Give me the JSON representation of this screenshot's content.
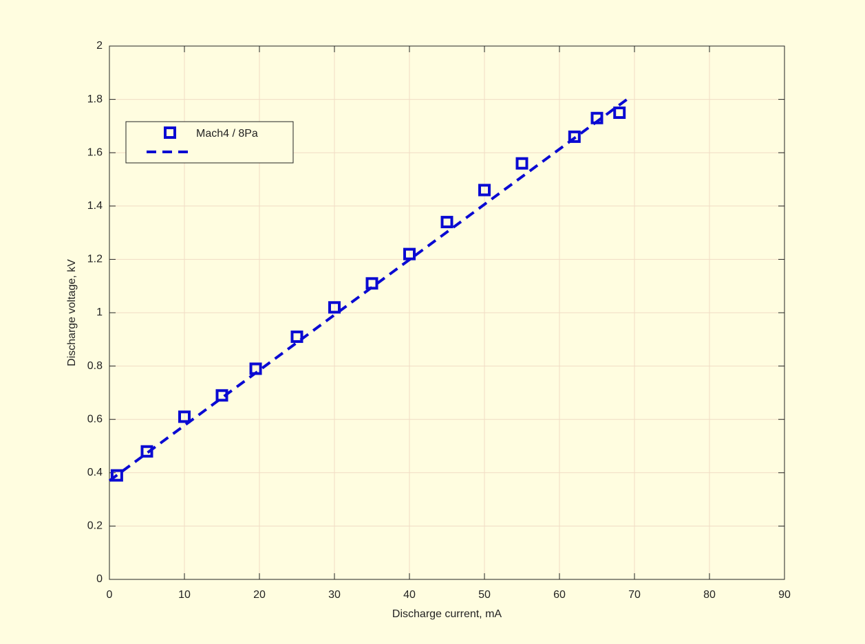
{
  "chart_data": {
    "type": "scatter",
    "xlabel": "Discharge current, mA",
    "ylabel": "Discharge voltage, kV",
    "xlim": [
      0,
      90
    ],
    "xticks": [
      0,
      10,
      20,
      30,
      40,
      50,
      60,
      70,
      80,
      90
    ],
    "ylim": [
      0,
      2
    ],
    "yticks": [
      0,
      0.2,
      0.4,
      0.6,
      0.8,
      1,
      1.2,
      1.4,
      1.6,
      1.8,
      2
    ],
    "grid": true,
    "legend": "upper left",
    "series": [
      {
        "name": "Mach4 / 8Pa",
        "color": "#0a0ad2",
        "mode": "markers",
        "x": [
          1,
          5,
          10,
          15,
          19.5,
          25,
          30,
          35,
          40,
          45,
          50,
          55,
          62,
          65,
          68
        ],
        "values": [
          0.39,
          0.48,
          0.61,
          0.69,
          0.79,
          0.91,
          1.02,
          1.11,
          1.22,
          1.34,
          1.46,
          1.56,
          1.66,
          1.73,
          1.75
        ]
      },
      {
        "color": "#0a0ad2",
        "mode": "dashed",
        "x": [
          0,
          69
        ],
        "values": [
          0.37,
          1.8
        ]
      }
    ]
  }
}
